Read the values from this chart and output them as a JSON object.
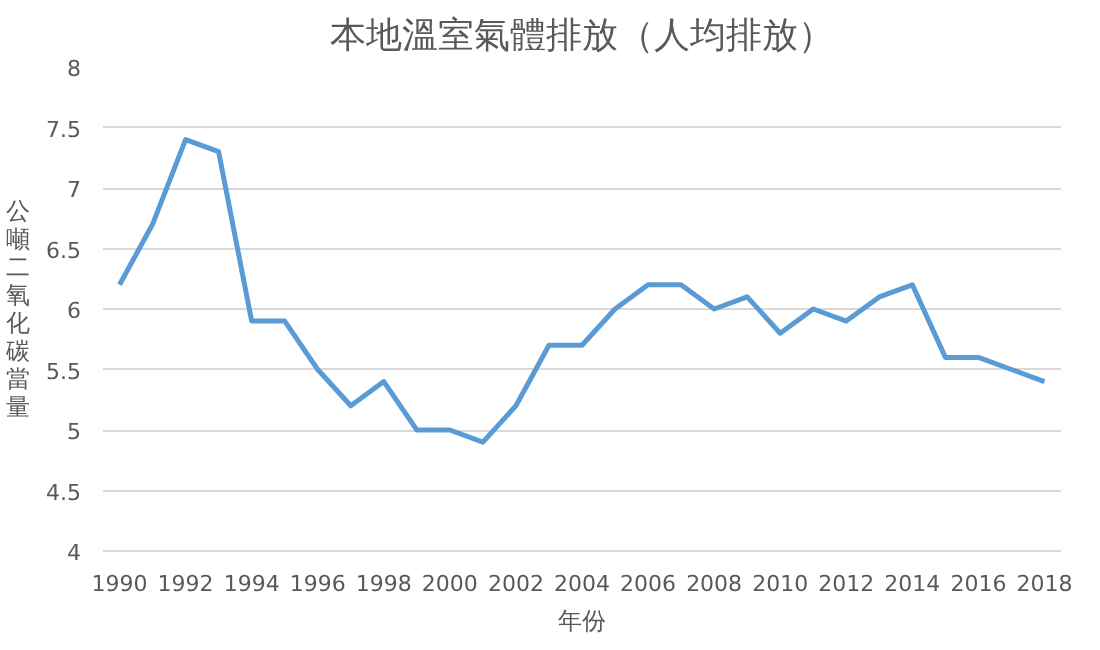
{
  "chart_data": {
    "type": "line",
    "title": "本地溫室氣體排放（人均排放）",
    "xlabel": "年份",
    "ylabel": "公噸二氧化碳當量",
    "x": [
      1990,
      1991,
      1992,
      1993,
      1994,
      1995,
      1996,
      1997,
      1998,
      1999,
      2000,
      2001,
      2002,
      2003,
      2004,
      2005,
      2006,
      2007,
      2008,
      2009,
      2010,
      2011,
      2012,
      2013,
      2014,
      2015,
      2016,
      2017,
      2018
    ],
    "series": [
      {
        "color": "#5b9bd5",
        "values": [
          6.2,
          6.7,
          7.4,
          7.3,
          5.9,
          5.9,
          5.5,
          5.2,
          5.4,
          5.0,
          5.0,
          4.9,
          5.2,
          5.7,
          5.7,
          6.0,
          6.2,
          6.2,
          6.0,
          6.1,
          5.8,
          6.0,
          5.9,
          6.1,
          6.2,
          5.6,
          5.6,
          5.5,
          5.4
        ]
      }
    ],
    "xlim": [
      1989.5,
      2018.5
    ],
    "xticks": [
      1990,
      1992,
      1994,
      1996,
      1998,
      2000,
      2002,
      2004,
      2006,
      2008,
      2010,
      2012,
      2014,
      2016,
      2018
    ],
    "ylim": [
      4,
      8
    ],
    "yticks": [
      4,
      4.5,
      5,
      5.5,
      6,
      6.5,
      7,
      7.5,
      8
    ],
    "grid": "y",
    "marker": "none",
    "line_style": "solid"
  }
}
